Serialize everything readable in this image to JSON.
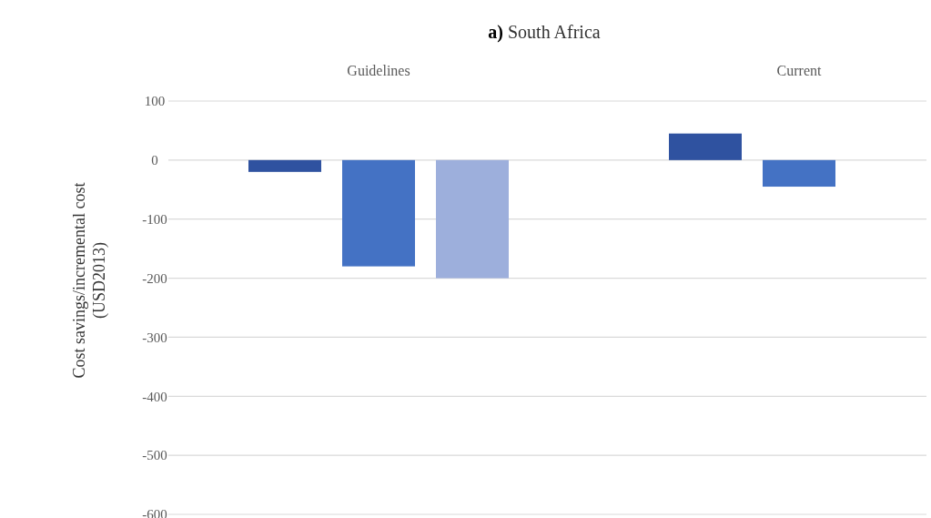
{
  "chart_data": {
    "type": "bar",
    "title": "a) South Africa",
    "ylabel": "Cost savings/incremental cost (USD2013)",
    "categories": [
      "Guidelines",
      "Current"
    ],
    "series": [
      {
        "color": "#2f52a0",
        "values": [
          -20,
          45
        ]
      },
      {
        "color": "#4472c4",
        "values": [
          -180,
          -45
        ]
      },
      {
        "color": "#9dafdc",
        "values": [
          -200,
          null
        ]
      }
    ],
    "ylim": [
      -600,
      100
    ],
    "yticks": [
      100,
      0,
      -100,
      -200,
      -300,
      -400,
      -500,
      -600
    ],
    "grid": "y"
  }
}
